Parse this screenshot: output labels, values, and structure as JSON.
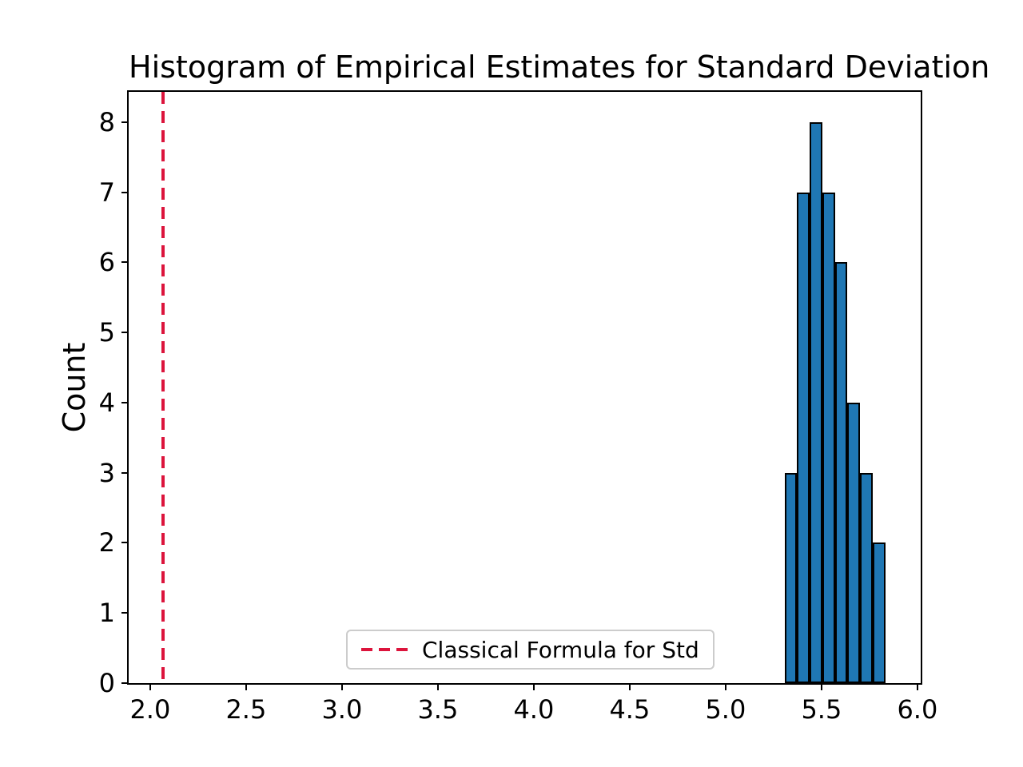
{
  "title": "Histogram of Empirical Estimates for Standard Deviation",
  "ylabel": "Count",
  "legend": {
    "label": "Classical Formula for Std"
  },
  "colors": {
    "bar_fill": "#1f77b4",
    "bar_edge": "#000000",
    "vline_red": "#dc143c",
    "legend_border": "#cccccc",
    "background": "#ffffff"
  },
  "chart_data": {
    "type": "bar",
    "subtype": "histogram",
    "title": "Histogram of Empirical Estimates for Standard Deviation",
    "xlabel": "",
    "ylabel": "Count",
    "bin_edges": [
      5.307,
      5.373,
      5.438,
      5.504,
      5.57,
      5.635,
      5.701,
      5.766,
      5.832
    ],
    "counts": [
      3,
      7,
      8,
      7,
      6,
      4,
      3,
      2
    ],
    "vline": {
      "x": 2.067,
      "label": "Classical Formula for Std",
      "linestyle": "dashed",
      "color": "#dc143c"
    },
    "xlim": [
      1.888,
      6.017
    ],
    "ylim": [
      0,
      8.43
    ],
    "xticks": [
      2.0,
      2.5,
      3.0,
      3.5,
      4.0,
      4.5,
      5.0,
      5.5,
      6.0
    ],
    "xtick_labels": [
      "2.0",
      "2.5",
      "3.0",
      "3.5",
      "4.0",
      "4.5",
      "5.0",
      "5.5",
      "6.0"
    ],
    "yticks": [
      0,
      1,
      2,
      3,
      4,
      5,
      6,
      7,
      8
    ],
    "ytick_labels": [
      "0",
      "1",
      "2",
      "3",
      "4",
      "5",
      "6",
      "7",
      "8"
    ],
    "legend_position": "lower center",
    "grid": false
  }
}
